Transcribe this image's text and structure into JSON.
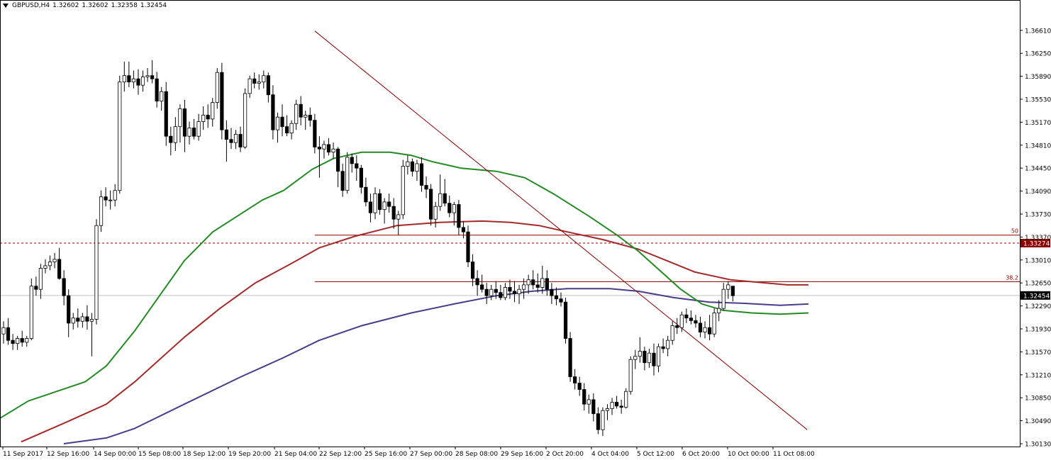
{
  "header": {
    "symbol": "GBPUSD,H4",
    "open": "1.32602",
    "high": "1.32602",
    "low": "1.32358",
    "close": "1.32454"
  },
  "colors": {
    "bull_candle": "#ffffff",
    "bear_candle": "#000000",
    "ma_fast": "#228B22",
    "ma_mid": "#A52A2A",
    "ma_slow": "#483D8B",
    "fib_line": "#8B0000",
    "trend_line": "#8B0000",
    "price_marker_bg": "#000000",
    "level_marker_bg": "#8B0000"
  },
  "chart_data": {
    "type": "candlestick",
    "symbol": "GBPUSD",
    "timeframe": "H4",
    "y_range": [
      1.3013,
      1.3673
    ],
    "y_ticks": [
      "1.36610",
      "1.36250",
      "1.35890",
      "1.35530",
      "1.35170",
      "1.34810",
      "1.34450",
      "1.34090",
      "1.33730",
      "1.33370",
      "1.33010",
      "1.32650",
      "1.32290",
      "1.31930",
      "1.31570",
      "1.31210",
      "1.30850",
      "1.30490",
      "1.30130"
    ],
    "x_labels": [
      "11 Sep 2017",
      "12 Sep 16:00",
      "14 Sep 00:00",
      "15 Sep 08:00",
      "18 Sep 12:00",
      "19 Sep 20:00",
      "21 Sep 04:00",
      "22 Sep 12:00",
      "25 Sep 16:00",
      "27 Sep 00:00",
      "28 Sep 08:00",
      "29 Sep 16:00",
      "2 Oct 20:00",
      "4 Oct 04:00",
      "5 Oct 12:00",
      "6 Oct 20:00",
      "10 Oct 00:00",
      "11 Oct 08:00"
    ],
    "candles": [
      [
        1.3185,
        1.3205,
        1.317,
        1.3195
      ],
      [
        1.3195,
        1.321,
        1.3168,
        1.3175
      ],
      [
        1.3175,
        1.3185,
        1.316,
        1.317
      ],
      [
        1.317,
        1.3182,
        1.316,
        1.3178
      ],
      [
        1.3178,
        1.319,
        1.3165,
        1.3172
      ],
      [
        1.3172,
        1.3182,
        1.3165,
        1.3178
      ],
      [
        1.3178,
        1.3272,
        1.3175,
        1.326
      ],
      [
        1.326,
        1.3275,
        1.3245,
        1.3255
      ],
      [
        1.3255,
        1.3295,
        1.324,
        1.3288
      ],
      [
        1.3288,
        1.3302,
        1.328,
        1.3292
      ],
      [
        1.3292,
        1.3308,
        1.3285,
        1.3298
      ],
      [
        1.3298,
        1.3312,
        1.3288,
        1.3302
      ],
      [
        1.3302,
        1.332,
        1.327,
        1.3272
      ],
      [
        1.3272,
        1.3285,
        1.323,
        1.3245
      ],
      [
        1.3245,
        1.3255,
        1.318,
        1.3202
      ],
      [
        1.3202,
        1.3218,
        1.3192,
        1.321
      ],
      [
        1.321,
        1.3225,
        1.3195,
        1.3205
      ],
      [
        1.3205,
        1.3218,
        1.3195,
        1.3212
      ],
      [
        1.3212,
        1.323,
        1.3192,
        1.3205
      ],
      [
        1.3205,
        1.3218,
        1.315,
        1.3208
      ],
      [
        1.3208,
        1.3365,
        1.32,
        1.3355
      ],
      [
        1.3355,
        1.341,
        1.3345,
        1.34
      ],
      [
        1.34,
        1.3415,
        1.3385,
        1.3395
      ],
      [
        1.3395,
        1.341,
        1.338,
        1.3395
      ],
      [
        1.3395,
        1.342,
        1.3385,
        1.341
      ],
      [
        1.341,
        1.359,
        1.3405,
        1.358
      ],
      [
        1.358,
        1.3612,
        1.3565,
        1.359
      ],
      [
        1.359,
        1.3612,
        1.3572,
        1.358
      ],
      [
        1.358,
        1.3598,
        1.357,
        1.3585
      ],
      [
        1.3585,
        1.36,
        1.356,
        1.3575
      ],
      [
        1.3575,
        1.3598,
        1.3565,
        1.3588
      ],
      [
        1.3588,
        1.3602,
        1.358,
        1.359
      ],
      [
        1.359,
        1.3614,
        1.3578,
        1.3585
      ],
      [
        1.3585,
        1.3596,
        1.354,
        1.355
      ],
      [
        1.355,
        1.3572,
        1.3535,
        1.3565
      ],
      [
        1.3565,
        1.358,
        1.348,
        1.3495
      ],
      [
        1.3495,
        1.351,
        1.3465,
        1.3485
      ],
      [
        1.3485,
        1.3525,
        1.3472,
        1.351
      ],
      [
        1.351,
        1.3545,
        1.3485,
        1.3538
      ],
      [
        1.3538,
        1.3552,
        1.347,
        1.3495
      ],
      [
        1.3495,
        1.3518,
        1.3482,
        1.3508
      ],
      [
        1.3508,
        1.3522,
        1.349,
        1.3495
      ],
      [
        1.3495,
        1.353,
        1.3488,
        1.3518
      ],
      [
        1.3518,
        1.3542,
        1.3505,
        1.3528
      ],
      [
        1.3528,
        1.3545,
        1.3508,
        1.3522
      ],
      [
        1.3522,
        1.3555,
        1.351,
        1.3548
      ],
      [
        1.3548,
        1.3602,
        1.3538,
        1.3595
      ],
      [
        1.3595,
        1.361,
        1.349,
        1.3505
      ],
      [
        1.3505,
        1.352,
        1.3455,
        1.349
      ],
      [
        1.349,
        1.3508,
        1.3475,
        1.3485
      ],
      [
        1.3485,
        1.3505,
        1.3475,
        1.3498
      ],
      [
        1.3498,
        1.351,
        1.347,
        1.3478
      ],
      [
        1.3478,
        1.357,
        1.3475,
        1.3562
      ],
      [
        1.3562,
        1.359,
        1.3555,
        1.3585
      ],
      [
        1.3585,
        1.3595,
        1.357,
        1.3578
      ],
      [
        1.3578,
        1.3592,
        1.3568,
        1.358
      ],
      [
        1.358,
        1.3598,
        1.357,
        1.359
      ],
      [
        1.359,
        1.3595,
        1.3548,
        1.356
      ],
      [
        1.356,
        1.3575,
        1.349,
        1.3505
      ],
      [
        1.3505,
        1.3532,
        1.3485,
        1.3525
      ],
      [
        1.3525,
        1.3545,
        1.3495,
        1.351
      ],
      [
        1.351,
        1.3528,
        1.3495,
        1.35
      ],
      [
        1.35,
        1.352,
        1.349,
        1.3515
      ],
      [
        1.3515,
        1.3552,
        1.3505,
        1.3545
      ],
      [
        1.3545,
        1.3558,
        1.3512,
        1.3525
      ],
      [
        1.3525,
        1.3535,
        1.3505,
        1.3528
      ],
      [
        1.3528,
        1.354,
        1.351,
        1.352
      ],
      [
        1.352,
        1.353,
        1.3468,
        1.3478
      ],
      [
        1.3478,
        1.3495,
        1.343,
        1.3475
      ],
      [
        1.3475,
        1.3488,
        1.346,
        1.3482
      ],
      [
        1.3482,
        1.3492,
        1.3465,
        1.347
      ],
      [
        1.347,
        1.3485,
        1.346,
        1.3475
      ],
      [
        1.3475,
        1.3478,
        1.3415,
        1.344
      ],
      [
        1.344,
        1.3452,
        1.34,
        1.341
      ],
      [
        1.341,
        1.347,
        1.3405,
        1.3462
      ],
      [
        1.3462,
        1.3468,
        1.3438,
        1.3452
      ],
      [
        1.3452,
        1.3465,
        1.3425,
        1.3445
      ],
      [
        1.3445,
        1.345,
        1.3405,
        1.3415
      ],
      [
        1.3415,
        1.343,
        1.3385,
        1.3392
      ],
      [
        1.3392,
        1.3405,
        1.336,
        1.3375
      ],
      [
        1.3375,
        1.3415,
        1.3365,
        1.3405
      ],
      [
        1.3405,
        1.3412,
        1.3372,
        1.338
      ],
      [
        1.338,
        1.3398,
        1.3358,
        1.3392
      ],
      [
        1.3392,
        1.3405,
        1.3375,
        1.3385
      ],
      [
        1.3385,
        1.3398,
        1.335,
        1.3365
      ],
      [
        1.3365,
        1.3378,
        1.334,
        1.3372
      ],
      [
        1.3372,
        1.3458,
        1.3365,
        1.3448
      ],
      [
        1.3448,
        1.3465,
        1.3435,
        1.3455
      ],
      [
        1.3455,
        1.346,
        1.3432,
        1.344
      ],
      [
        1.344,
        1.3458,
        1.3425,
        1.3452
      ],
      [
        1.3452,
        1.3462,
        1.3408,
        1.3418
      ],
      [
        1.3418,
        1.3432,
        1.3398,
        1.3412
      ],
      [
        1.3412,
        1.342,
        1.3355,
        1.3365
      ],
      [
        1.3365,
        1.3392,
        1.3352,
        1.3385
      ],
      [
        1.3385,
        1.3435,
        1.3378,
        1.3405
      ],
      [
        1.3405,
        1.3428,
        1.3385,
        1.339
      ],
      [
        1.339,
        1.3402,
        1.3368,
        1.3375
      ],
      [
        1.3375,
        1.3392,
        1.3355,
        1.3388
      ],
      [
        1.3388,
        1.3395,
        1.334,
        1.3352
      ],
      [
        1.3352,
        1.3362,
        1.3335,
        1.3345
      ],
      [
        1.3345,
        1.3355,
        1.329,
        1.3298
      ],
      [
        1.3298,
        1.331,
        1.326,
        1.3272
      ],
      [
        1.3272,
        1.3285,
        1.3245,
        1.3262
      ],
      [
        1.3262,
        1.3278,
        1.325,
        1.3255
      ],
      [
        1.3255,
        1.3265,
        1.3232,
        1.3245
      ],
      [
        1.3245,
        1.3262,
        1.3238,
        1.3255
      ],
      [
        1.3255,
        1.3268,
        1.324,
        1.325
      ],
      [
        1.325,
        1.3262,
        1.3238,
        1.3242
      ],
      [
        1.3242,
        1.3265,
        1.3238,
        1.3258
      ],
      [
        1.3258,
        1.327,
        1.324,
        1.3252
      ],
      [
        1.3252,
        1.3268,
        1.3235,
        1.3248
      ],
      [
        1.3248,
        1.3262,
        1.3232,
        1.3255
      ],
      [
        1.3255,
        1.3272,
        1.324,
        1.3262
      ],
      [
        1.3262,
        1.3278,
        1.3248,
        1.327
      ],
      [
        1.327,
        1.3285,
        1.3255,
        1.3262
      ],
      [
        1.3262,
        1.328,
        1.325,
        1.3258
      ],
      [
        1.3258,
        1.3292,
        1.3248,
        1.3272
      ],
      [
        1.3272,
        1.3285,
        1.3245,
        1.3255
      ],
      [
        1.3255,
        1.3265,
        1.3232,
        1.3245
      ],
      [
        1.3245,
        1.3258,
        1.323,
        1.324
      ],
      [
        1.324,
        1.325,
        1.3228,
        1.3235
      ],
      [
        1.3235,
        1.3242,
        1.317,
        1.3178
      ],
      [
        1.3178,
        1.3188,
        1.311,
        1.3118
      ],
      [
        1.3118,
        1.313,
        1.3098,
        1.3108
      ],
      [
        1.3108,
        1.3118,
        1.3088,
        1.3098
      ],
      [
        1.3098,
        1.3108,
        1.3065,
        1.3075
      ],
      [
        1.3075,
        1.309,
        1.306,
        1.3082
      ],
      [
        1.3082,
        1.3092,
        1.3048,
        1.306
      ],
      [
        1.306,
        1.307,
        1.3028,
        1.3035
      ],
      [
        1.3035,
        1.307,
        1.3025,
        1.3065
      ],
      [
        1.3065,
        1.3075,
        1.305,
        1.3068
      ],
      [
        1.3068,
        1.3085,
        1.3058,
        1.3078
      ],
      [
        1.3078,
        1.3088,
        1.3068,
        1.3072
      ],
      [
        1.3072,
        1.3082,
        1.306,
        1.307
      ],
      [
        1.307,
        1.31,
        1.3068,
        1.3095
      ],
      [
        1.3095,
        1.315,
        1.309,
        1.3145
      ],
      [
        1.3145,
        1.316,
        1.313,
        1.315
      ],
      [
        1.315,
        1.318,
        1.314,
        1.3158
      ],
      [
        1.3158,
        1.3165,
        1.3128,
        1.314
      ],
      [
        1.314,
        1.3162,
        1.3132,
        1.3155
      ],
      [
        1.3155,
        1.317,
        1.312,
        1.3135
      ],
      [
        1.3135,
        1.317,
        1.3125,
        1.3165
      ],
      [
        1.3165,
        1.3178,
        1.3155,
        1.3162
      ],
      [
        1.3162,
        1.3182,
        1.315,
        1.3175
      ],
      [
        1.3175,
        1.3205,
        1.3168,
        1.3198
      ],
      [
        1.3198,
        1.321,
        1.3185,
        1.3195
      ],
      [
        1.3195,
        1.322,
        1.3188,
        1.3215
      ],
      [
        1.3215,
        1.3225,
        1.3202,
        1.321
      ],
      [
        1.321,
        1.3222,
        1.32,
        1.3206
      ],
      [
        1.3206,
        1.3215,
        1.3195,
        1.3202
      ],
      [
        1.3202,
        1.3212,
        1.318,
        1.3188
      ],
      [
        1.3188,
        1.3205,
        1.3178,
        1.3195
      ],
      [
        1.3195,
        1.3215,
        1.3175,
        1.3185
      ],
      [
        1.3185,
        1.3225,
        1.318,
        1.3218
      ],
      [
        1.3218,
        1.3238,
        1.3205,
        1.3225
      ],
      [
        1.3225,
        1.3265,
        1.3222,
        1.3255
      ],
      [
        1.3255,
        1.3268,
        1.324,
        1.3262
      ],
      [
        1.326,
        1.326,
        1.3236,
        1.3245
      ]
    ],
    "ma_fast": [
      [
        0,
        1.3053
      ],
      [
        40,
        1.308
      ],
      [
        120,
        1.311
      ],
      [
        150,
        1.3135
      ],
      [
        190,
        1.319
      ],
      [
        260,
        1.33
      ],
      [
        300,
        1.3345
      ],
      [
        370,
        1.3395
      ],
      [
        400,
        1.341
      ],
      [
        440,
        1.3443
      ],
      [
        470,
        1.346
      ],
      [
        510,
        1.347
      ],
      [
        550,
        1.347
      ],
      [
        580,
        1.3465
      ],
      [
        610,
        1.3455
      ],
      [
        650,
        1.3445
      ],
      [
        700,
        1.344
      ],
      [
        740,
        1.343
      ],
      [
        780,
        1.3405
      ],
      [
        830,
        1.337
      ],
      [
        870,
        1.334
      ],
      [
        900,
        1.3315
      ],
      [
        930,
        1.3285
      ],
      [
        960,
        1.3255
      ],
      [
        990,
        1.3232
      ],
      [
        1020,
        1.3222
      ],
      [
        1060,
        1.3218
      ],
      [
        1100,
        1.3216
      ],
      [
        1140,
        1.3218
      ]
    ],
    "ma_mid": [
      [
        30,
        1.3016
      ],
      [
        90,
        1.3045
      ],
      [
        150,
        1.3075
      ],
      [
        190,
        1.311
      ],
      [
        260,
        1.318
      ],
      [
        310,
        1.3225
      ],
      [
        360,
        1.3265
      ],
      [
        410,
        1.3295
      ],
      [
        450,
        1.332
      ],
      [
        500,
        1.3338
      ],
      [
        560,
        1.3355
      ],
      [
        620,
        1.336
      ],
      [
        680,
        1.3362
      ],
      [
        720,
        1.336
      ],
      [
        760,
        1.3355
      ],
      [
        800,
        1.3345
      ],
      [
        850,
        1.3333
      ],
      [
        900,
        1.3318
      ],
      [
        940,
        1.33
      ],
      [
        980,
        1.3282
      ],
      [
        1030,
        1.327
      ],
      [
        1080,
        1.3265
      ],
      [
        1110,
        1.3262
      ],
      [
        1140,
        1.3262
      ]
    ],
    "ma_slow": [
      [
        90,
        1.3013
      ],
      [
        150,
        1.3022
      ],
      [
        190,
        1.3037
      ],
      [
        260,
        1.3075
      ],
      [
        340,
        1.3118
      ],
      [
        400,
        1.3148
      ],
      [
        450,
        1.3175
      ],
      [
        510,
        1.3198
      ],
      [
        580,
        1.3218
      ],
      [
        640,
        1.3232
      ],
      [
        700,
        1.3245
      ],
      [
        750,
        1.3252
      ],
      [
        800,
        1.3256
      ],
      [
        860,
        1.3256
      ],
      [
        900,
        1.3252
      ],
      [
        950,
        1.3242
      ],
      [
        1000,
        1.3235
      ],
      [
        1050,
        1.3233
      ],
      [
        1100,
        1.323
      ],
      [
        1140,
        1.3232
      ]
    ],
    "trend_line": {
      "start": {
        "bar": 67,
        "price": 1.366
      },
      "end": {
        "bar": 173,
        "price": 1.3035
      }
    },
    "fib_levels": [
      {
        "label": "50",
        "price": 1.334
      },
      {
        "label": "38.2",
        "price": 1.3267
      }
    ],
    "horizontal_levels": [
      {
        "label": "1.33274",
        "price": 1.33274,
        "style": "dashed"
      },
      {
        "label": "1.32454",
        "price": 1.32454,
        "style": "solid-gray",
        "current_price": true
      }
    ]
  }
}
